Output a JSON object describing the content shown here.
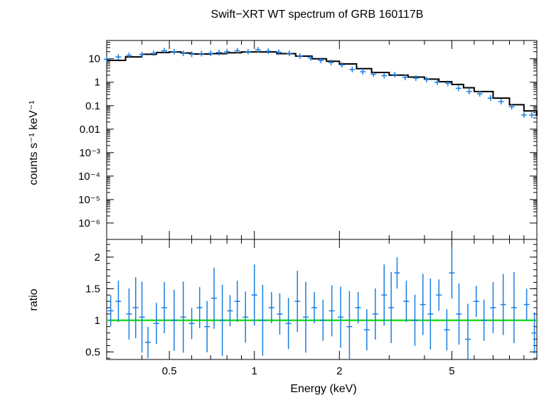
{
  "chart_data": [
    {
      "type": "scatter",
      "panel": "spectrum",
      "title": "Swift−XRT WT spectrum of GRB 160117B",
      "ylabel": "counts s⁻¹ keV⁻¹",
      "xscale": "log",
      "yscale": "log",
      "xlim": [
        0.3,
        10
      ],
      "ylim": [
        2e-07,
        60
      ],
      "yticks": [
        {
          "value": 10,
          "label": "10"
        },
        {
          "value": 1,
          "label": "1"
        },
        {
          "value": 0.1,
          "label": "0.1"
        },
        {
          "value": 0.01,
          "label": "0.01"
        },
        {
          "value": 0.001,
          "label": "10⁻³"
        },
        {
          "value": 0.0001,
          "label": "10⁻⁴"
        },
        {
          "value": 1e-05,
          "label": "10⁻⁵"
        },
        {
          "value": 1e-06,
          "label": "10⁻⁶"
        }
      ],
      "series": [
        {
          "kind": "data",
          "color": "#1a7fe0",
          "x": [
            0.3,
            0.33,
            0.36,
            0.4,
            0.44,
            0.48,
            0.52,
            0.56,
            0.6,
            0.65,
            0.7,
            0.75,
            0.8,
            0.87,
            0.95,
            1.03,
            1.12,
            1.22,
            1.33,
            1.45,
            1.58,
            1.72,
            1.87,
            2.04,
            2.22,
            2.42,
            2.64,
            2.88,
            3.14,
            3.42,
            3.73,
            4.07,
            4.44,
            4.84,
            5.28,
            5.76,
            6.28,
            6.85,
            7.47,
            8.15,
            9.0,
            9.6
          ],
          "y": [
            9.5,
            12,
            14,
            15,
            17,
            22,
            20,
            17,
            15.5,
            16.5,
            17,
            18.5,
            20,
            22,
            20,
            24,
            21,
            19,
            17,
            13,
            11,
            8.5,
            7,
            5.5,
            3.5,
            2.8,
            2.2,
            1.9,
            2.1,
            1.6,
            1.5,
            1.3,
            1.0,
            0.9,
            0.55,
            0.4,
            0.32,
            0.21,
            0.15,
            0.09,
            0.04,
            0.04
          ]
        },
        {
          "kind": "model",
          "color": "#000000",
          "x": [
            0.3,
            0.35,
            0.4,
            0.45,
            0.5,
            0.55,
            0.6,
            0.7,
            0.8,
            0.9,
            1.0,
            1.2,
            1.4,
            1.6,
            1.8,
            2.0,
            2.3,
            2.6,
            3.0,
            3.5,
            4.0,
            4.5,
            5.0,
            5.5,
            6.0,
            7.0,
            8.0,
            9.0,
            10.0
          ],
          "y": [
            8.5,
            12,
            15.5,
            18.5,
            19.5,
            17.5,
            16,
            16.5,
            18,
            19.5,
            19.5,
            16.5,
            13,
            10,
            7.8,
            6.0,
            3.8,
            2.6,
            2.0,
            1.65,
            1.35,
            1.05,
            0.8,
            0.58,
            0.4,
            0.21,
            0.11,
            0.06,
            0.04
          ]
        }
      ]
    },
    {
      "type": "scatter",
      "panel": "ratio",
      "xlabel": "Energy (keV)",
      "ylabel": "ratio",
      "xscale": "log",
      "xlim": [
        0.3,
        10
      ],
      "ylim": [
        0.38,
        2.28
      ],
      "xticks": [
        {
          "value": 0.5,
          "label": "0.5"
        },
        {
          "value": 1,
          "label": "1"
        },
        {
          "value": 2,
          "label": "2"
        },
        {
          "value": 5,
          "label": "5"
        }
      ],
      "yticks": [
        {
          "value": 0.5,
          "label": "0.5"
        },
        {
          "value": 1,
          "label": "1"
        },
        {
          "value": 1.5,
          "label": "1.5"
        },
        {
          "value": 2,
          "label": "2"
        }
      ],
      "reference_line": {
        "value": 1,
        "color": "#22dd22"
      },
      "series": [
        {
          "kind": "data",
          "color": "#1a7fe0",
          "x": [
            0.31,
            0.33,
            0.36,
            0.38,
            0.4,
            0.42,
            0.45,
            0.48,
            0.52,
            0.56,
            0.6,
            0.64,
            0.68,
            0.72,
            0.77,
            0.82,
            0.87,
            0.93,
            1.0,
            1.07,
            1.15,
            1.23,
            1.32,
            1.42,
            1.52,
            1.63,
            1.75,
            1.88,
            2.02,
            2.17,
            2.33,
            2.5,
            2.68,
            2.88,
            3.05,
            3.2,
            3.45,
            3.7,
            3.95,
            4.2,
            4.5,
            4.8,
            5.0,
            5.3,
            5.7,
            6.1,
            6.5,
            7.0,
            7.6,
            8.3,
            9.2,
            9.8
          ],
          "y": [
            1.15,
            1.3,
            1.1,
            1.2,
            1.05,
            0.65,
            0.95,
            1.2,
            1.0,
            1.05,
            0.95,
            1.2,
            0.9,
            1.35,
            1.0,
            1.15,
            1.3,
            1.05,
            1.4,
            1.0,
            1.2,
            1.1,
            0.95,
            1.3,
            1.05,
            1.2,
            1.0,
            1.15,
            1.05,
            0.9,
            1.2,
            0.85,
            1.1,
            1.4,
            1.2,
            1.75,
            1.3,
            1.0,
            1.25,
            1.1,
            1.4,
            0.85,
            1.75,
            1.1,
            0.7,
            1.3,
            1.0,
            1.2,
            1.25,
            1.2,
            1.25,
            0.8
          ]
        }
      ]
    }
  ]
}
